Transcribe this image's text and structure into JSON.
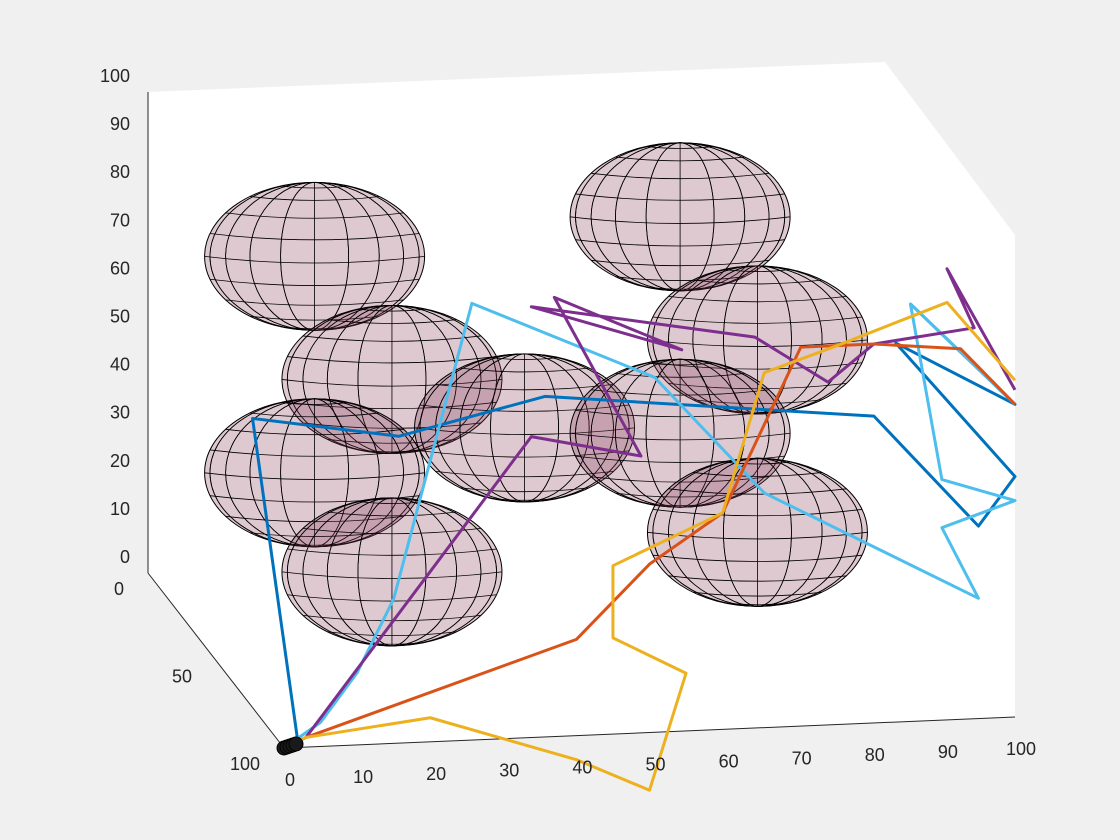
{
  "chart_data": {
    "type": "line",
    "title": "",
    "xlabel": "",
    "ylabel": "",
    "zlabel": "",
    "x_ticks": [
      "0",
      "10",
      "20",
      "30",
      "40",
      "50",
      "60",
      "70",
      "80",
      "90",
      "100"
    ],
    "y_ticks": [
      "0",
      "50",
      "100"
    ],
    "z_ticks": [
      "0",
      "10",
      "20",
      "30",
      "40",
      "50",
      "60",
      "70",
      "80",
      "90",
      "100"
    ],
    "xlim": [
      0,
      100
    ],
    "ylim": [
      0,
      100
    ],
    "zlim": [
      0,
      100
    ],
    "grid": false,
    "legend": "none",
    "obstacles": [
      {
        "x": 20,
        "y": 15,
        "z": 70
      },
      {
        "x": 25,
        "y": 45,
        "z": 55
      },
      {
        "x": 70,
        "y": 15,
        "z": 75
      },
      {
        "x": 75,
        "y": 45,
        "z": 60
      },
      {
        "x": 45,
        "y": 35,
        "z": 40
      },
      {
        "x": 20,
        "y": 15,
        "z": 25
      },
      {
        "x": 25,
        "y": 45,
        "z": 15
      },
      {
        "x": 70,
        "y": 15,
        "z": 30
      },
      {
        "x": 75,
        "y": 45,
        "z": 20
      }
    ],
    "series": [
      {
        "color": "#0072bd",
        "points": [
          [
            0,
            100,
            0
          ],
          [
            2,
            100,
            0
          ],
          [
            5,
            50,
            50
          ],
          [
            25,
            50,
            45
          ],
          [
            45,
            50,
            52
          ],
          [
            90,
            50,
            45
          ],
          [
            95,
            100,
            40
          ],
          [
            100,
            100,
            50
          ],
          [
            93,
            50,
            60
          ],
          [
            100,
            100,
            65
          ],
          [
            95,
            50,
            68
          ]
        ]
      },
      {
        "color": "#4dbeee",
        "points": [
          [
            0,
            100,
            0
          ],
          [
            5,
            100,
            5
          ],
          [
            10,
            100,
            15
          ],
          [
            15,
            100,
            30
          ],
          [
            35,
            50,
            72
          ],
          [
            60,
            50,
            55
          ],
          [
            75,
            50,
            30
          ],
          [
            95,
            100,
            25
          ],
          [
            90,
            100,
            40
          ],
          [
            100,
            100,
            45
          ],
          [
            90,
            100,
            50
          ],
          [
            95,
            50,
            68
          ],
          [
            100,
            100,
            65
          ]
        ]
      },
      {
        "color": "#7e2f8e",
        "points": [
          [
            0,
            100,
            0
          ],
          [
            3,
            100,
            2
          ],
          [
            45,
            40,
            40
          ],
          [
            60,
            40,
            35
          ],
          [
            50,
            30,
            65
          ],
          [
            60,
            70,
            68
          ],
          [
            45,
            40,
            67
          ],
          [
            70,
            70,
            70
          ],
          [
            80,
            70,
            60
          ],
          [
            90,
            50,
            60
          ],
          [
            100,
            70,
            70
          ],
          [
            100,
            50,
            75
          ],
          [
            100,
            100,
            68
          ]
        ]
      },
      {
        "color": "#d95319",
        "points": [
          [
            0,
            100,
            0
          ],
          [
            3,
            100,
            2
          ],
          [
            40,
            100,
            20
          ],
          [
            50,
            100,
            35
          ],
          [
            60,
            100,
            45
          ],
          [
            80,
            50,
            60
          ],
          [
            90,
            50,
            60
          ],
          [
            100,
            60,
            62
          ],
          [
            100,
            100,
            65
          ]
        ]
      },
      {
        "color": "#edb120",
        "points": [
          [
            0,
            100,
            0
          ],
          [
            3,
            100,
            2
          ],
          [
            20,
            100,
            5
          ],
          [
            30,
            100,
            0
          ],
          [
            40,
            100,
            -5
          ],
          [
            50,
            100,
            -12
          ],
          [
            55,
            100,
            12
          ],
          [
            45,
            100,
            20
          ],
          [
            45,
            100,
            35
          ],
          [
            60,
            100,
            45
          ],
          [
            75,
            50,
            55
          ],
          [
            85,
            50,
            60
          ],
          [
            100,
            50,
            68
          ],
          [
            100,
            100,
            70
          ]
        ]
      }
    ]
  }
}
